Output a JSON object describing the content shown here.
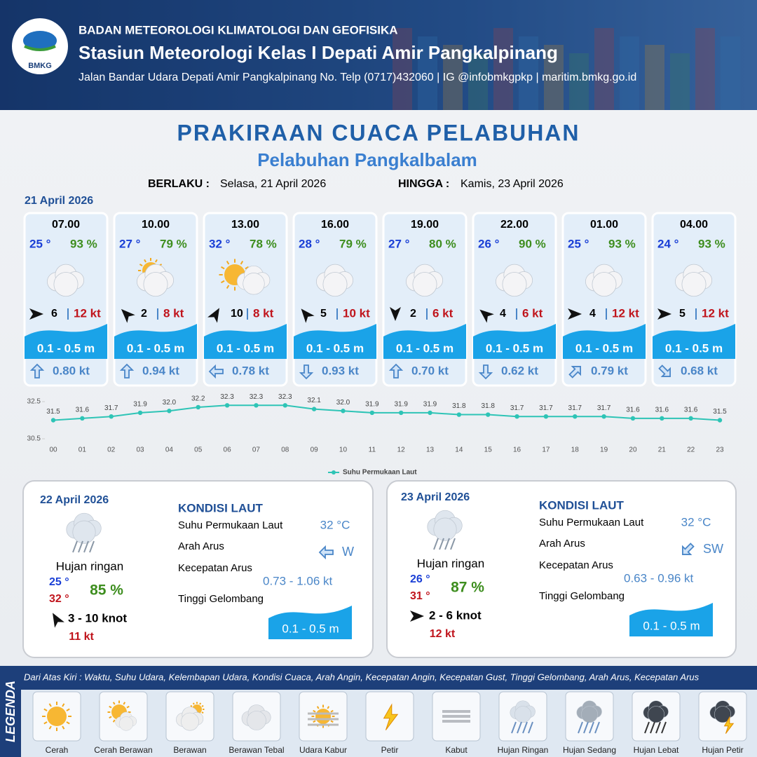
{
  "header": {
    "agency": "BADAN METEOROLOGI KLIMATOLOGI DAN GEOFISIKA",
    "station": "Stasiun Meteorologi Kelas I Depati Amir Pangkalpinang",
    "address": "Jalan Bandar Udara Depati Amir Pangkalpinang No. Telp (0717)432060 | IG @infobmkgpkp | maritim.bmkg.go.id",
    "logo": "BMKG"
  },
  "title": "PRAKIRAAN CUACA PELABUHAN",
  "subtitle": "Pelabuhan Pangkalbalam",
  "valid": {
    "from_label": "BERLAKU :",
    "from": "Selasa, 21 April 2026",
    "to_label": "HINGGA :",
    "to": "Kamis, 23 April 2026"
  },
  "day1": {
    "date": "21 April 2026"
  },
  "slots": [
    {
      "time": "07.00",
      "temp": "25 °",
      "humidity": "93 %",
      "wind": "6",
      "gust": "12 kt",
      "wave": "0.1 - 0.5 m",
      "current": "0.80 kt"
    },
    {
      "time": "10.00",
      "temp": "27 °",
      "humidity": "79 %",
      "wind": "2",
      "gust": "8 kt",
      "wave": "0.1 - 0.5 m",
      "current": "0.94 kt"
    },
    {
      "time": "13.00",
      "temp": "32 °",
      "humidity": "78 %",
      "wind": "10",
      "gust": "8 kt",
      "wave": "0.1 - 0.5 m",
      "current": "0.78 kt"
    },
    {
      "time": "16.00",
      "temp": "28 °",
      "humidity": "79 %",
      "wind": "5",
      "gust": "10 kt",
      "wave": "0.1 - 0.5 m",
      "current": "0.93 kt"
    },
    {
      "time": "19.00",
      "temp": "27 °",
      "humidity": "80 %",
      "wind": "2",
      "gust": "6 kt",
      "wave": "0.1 - 0.5 m",
      "current": "0.70 kt"
    },
    {
      "time": "22.00",
      "temp": "26 °",
      "humidity": "90 %",
      "wind": "4",
      "gust": "6 kt",
      "wave": "0.1 - 0.5 m",
      "current": "0.62 kt"
    },
    {
      "time": "01.00",
      "temp": "25 °",
      "humidity": "93 %",
      "wind": "4",
      "gust": "12 kt",
      "wave": "0.1 - 0.5 m",
      "current": "0.79 kt"
    },
    {
      "time": "04.00",
      "temp": "24 °",
      "humidity": "93 %",
      "wind": "5",
      "gust": "12 kt",
      "wave": "0.1 - 0.5 m",
      "current": "0.68 kt"
    }
  ],
  "chart_data": {
    "type": "line",
    "categories": [
      "00",
      "01",
      "02",
      "03",
      "04",
      "05",
      "06",
      "07",
      "08",
      "09",
      "10",
      "11",
      "12",
      "13",
      "14",
      "15",
      "16",
      "17",
      "18",
      "19",
      "20",
      "21",
      "22",
      "23"
    ],
    "series": [
      {
        "name": "Suhu Permukaan Laut",
        "color": "#2ec4b6",
        "values": [
          31.5,
          31.6,
          31.7,
          31.9,
          32.0,
          32.2,
          32.3,
          32.3,
          32.3,
          32.1,
          32.0,
          31.9,
          31.9,
          31.9,
          31.8,
          31.8,
          31.7,
          31.7,
          31.7,
          31.7,
          31.6,
          31.6,
          31.6,
          31.5
        ],
        "value_labels": [
          "31.5",
          "31.6",
          "31.7",
          "31.9",
          "32.0",
          "32.2",
          "32.3",
          "32.3",
          "32.3",
          "32.1",
          "32.0",
          "31.9",
          "31.9",
          "31.9",
          "31.8",
          "31.8",
          "31.7",
          "31.7",
          "31.7",
          "31.7",
          "31.6",
          "31.6",
          "31.6",
          "31.5"
        ]
      }
    ],
    "ylim": [
      30.5,
      32.5
    ],
    "yticks": [
      30.5,
      32.5
    ],
    "legend": "bottom"
  },
  "forecast_days": [
    {
      "date": "22 April 2026",
      "weather": "Hujan ringan",
      "temp_min": "25 °",
      "temp_max": "32 °",
      "humidity": "85 %",
      "wind": "3  - 10 knot",
      "gust": "11 kt",
      "kondisi_title": "KONDISI LAUT",
      "sst_label": "Suhu Permukaan Laut",
      "sst": "32 °C",
      "arah_label": "Arah Arus",
      "arah": "W",
      "speed_label": "Kecepatan Arus",
      "speed": "0.73  - 1.06 kt",
      "wave_label": "Tinggi Gelombang",
      "wave": "0.1 - 0.5 m"
    },
    {
      "date": "23 April 2026",
      "weather": "Hujan ringan",
      "temp_min": "26 °",
      "temp_max": "31 °",
      "humidity": "87 %",
      "wind": "2  - 6 knot",
      "gust": "12 kt",
      "kondisi_title": "KONDISI LAUT",
      "sst_label": "Suhu Permukaan Laut",
      "sst": "32 °C",
      "arah_label": "Arah Arus",
      "arah": "SW",
      "speed_label": "Kecepatan Arus",
      "speed": "0.63  - 0.96 kt",
      "wave_label": "Tinggi Gelombang",
      "wave": "0.1 - 0.5 m"
    }
  ],
  "legend": {
    "title": "LEGENDA",
    "description": "Dari Atas Kiri : Waktu, Suhu Udara, Kelembapan Udara, Kondisi Cuaca, Arah Angin, Kecepatan Angin, Kecepatan Gust, Tinggi Gelombang, Arah Arus, Kecepatan Arus",
    "items": [
      "Cerah",
      "Cerah Berawan",
      "Berawan",
      "Berawan Tebal",
      "Udara Kabur",
      "Petir",
      "Kabut",
      "Hujan Ringan",
      "Hujan Sedang",
      "Hujan Lebat",
      "Hujan Petir"
    ]
  }
}
